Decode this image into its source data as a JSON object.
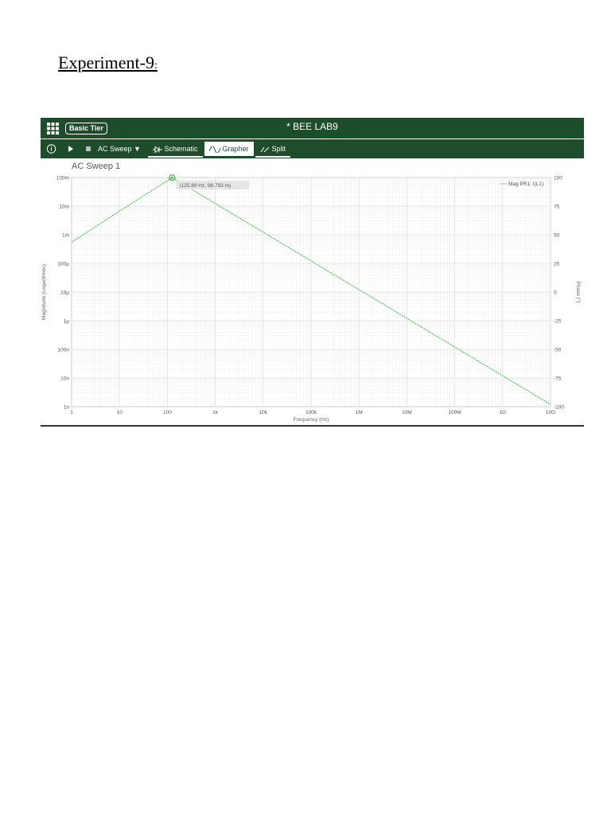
{
  "document": {
    "heading": "Experiment-9",
    "heading_suffix": ":"
  },
  "app": {
    "title": "* BEE LAB9",
    "tier_badge": "Basic Tier",
    "toolbar": {
      "sweep_select": "AC Sweep",
      "tabs": [
        "Schematic",
        "Grapher",
        "Split"
      ],
      "active_tab": "Grapher"
    },
    "icons": [
      "apps-grid-icon",
      "info-icon",
      "play-icon",
      "stop-icon",
      "chevron-down-icon",
      "diode-icon",
      "wave-icon",
      "split-icon"
    ],
    "colors": {
      "brand": "#1e4d2b",
      "trace": "#4cc04c"
    }
  },
  "chart_data": {
    "type": "line",
    "title": "AC Sweep 1",
    "xlabel": "Frequency (Hz)",
    "ylabel": "Magnitude (Logarithmic)",
    "y2label": "Phase (°)",
    "xscale": "log",
    "yscale": "log",
    "xlim": [
      1,
      10000000000
    ],
    "ylim": [
      1e-09,
      0.1
    ],
    "y2lim": [
      -100,
      100
    ],
    "x_ticks": [
      "1",
      "10",
      "100",
      "1k",
      "10k",
      "100k",
      "1M",
      "10M",
      "100M",
      "1G",
      "10G"
    ],
    "y_ticks": [
      "100m",
      "10m",
      "1m",
      "100µ",
      "10µ",
      "1µ",
      "100n",
      "10n",
      "1n"
    ],
    "y2_ticks": [
      "100",
      "75",
      "50",
      "25",
      "0",
      "-25",
      "-50",
      "-75",
      "-100"
    ],
    "legend": "Mag PR1: I(L1)",
    "legend_position": "top-right",
    "grid": true,
    "series": [
      {
        "name": "Mag PR1: I(L1)",
        "x": [
          1,
          10,
          125.89,
          10000000000
        ],
        "y": [
          0.00055,
          0.0067,
          0.098793,
          1.2e-09
        ]
      }
    ],
    "cursor": {
      "x": 125.89,
      "y": 0.098793,
      "label": "(125.89 Hz, 98.793 m)"
    }
  }
}
